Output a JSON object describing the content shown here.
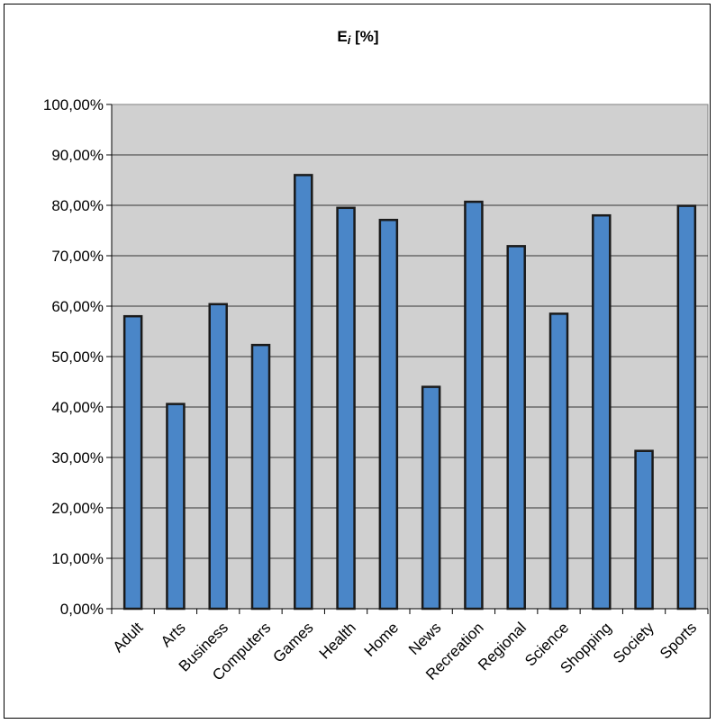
{
  "chart_data": {
    "type": "bar",
    "title_main": "E",
    "title_sub": "i",
    "title_unit": " [%]",
    "categories": [
      "Adult",
      "Arts",
      "Business",
      "Computers",
      "Games",
      "Health",
      "Home",
      "News",
      "Recreation",
      "Regional",
      "Science",
      "Shopping",
      "Society",
      "Sports"
    ],
    "values": [
      58.0,
      40.6,
      60.4,
      52.3,
      86.0,
      79.5,
      77.1,
      44.0,
      80.7,
      71.9,
      58.5,
      78.0,
      31.3,
      79.9
    ],
    "ylim": [
      0,
      100
    ],
    "yticks": [
      "0,00%",
      "10,00%",
      "20,00%",
      "30,00%",
      "40,00%",
      "50,00%",
      "60,00%",
      "70,00%",
      "80,00%",
      "90,00%",
      "100,00%"
    ],
    "grid": true,
    "colors": {
      "bar": "#4a86c8",
      "bar_stroke": "#1a1a1a",
      "plot_bg": "#d0d0d0"
    }
  }
}
